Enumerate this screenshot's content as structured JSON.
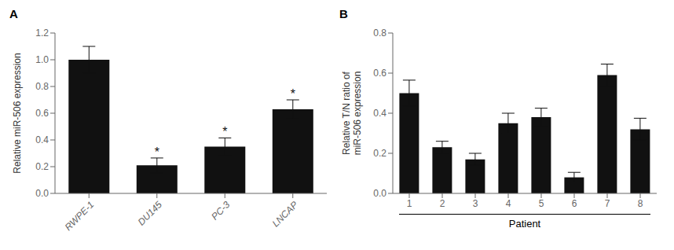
{
  "chart_data": [
    {
      "type": "bar",
      "title": "A",
      "categories": [
        "RWPE-1",
        "DU145",
        "PC-3",
        "LNCAP"
      ],
      "values": [
        1.0,
        0.21,
        0.35,
        0.63
      ],
      "errors": [
        0.1,
        0.055,
        0.065,
        0.07
      ],
      "ylabel": "Relative miR-506 expression",
      "ylim": [
        0,
        1.2
      ],
      "yticks": [
        {
          "value": 0,
          "label": "0.0"
        },
        0.2,
        0.4,
        0.6,
        0.8,
        {
          "value": 1,
          "label": "1.0"
        },
        1.2
      ],
      "color": "#111111",
      "grid": false,
      "annotations": [
        {
          "category": "DU145",
          "text": "*"
        },
        {
          "category": "PC-3",
          "text": "*"
        },
        {
          "category": "LNCAP",
          "text": "*"
        }
      ]
    },
    {
      "type": "bar",
      "title": "B",
      "categories": [
        "1",
        "2",
        "3",
        "4",
        "5",
        "6",
        "7",
        "8"
      ],
      "values": [
        0.5,
        0.23,
        0.17,
        0.35,
        0.38,
        0.08,
        0.59,
        0.32
      ],
      "errors": [
        0.065,
        0.03,
        0.03,
        0.05,
        0.045,
        0.025,
        0.055,
        0.055
      ],
      "ylabel": "Relative T/N ratio of\nmiR-506 expression",
      "xlabel": "Patient",
      "ylim": [
        0,
        0.8
      ],
      "yticks": [
        {
          "value": 0,
          "label": "0.0"
        },
        0.2,
        0.4,
        0.6,
        0.8
      ],
      "color": "#111111",
      "grid": false
    }
  ]
}
